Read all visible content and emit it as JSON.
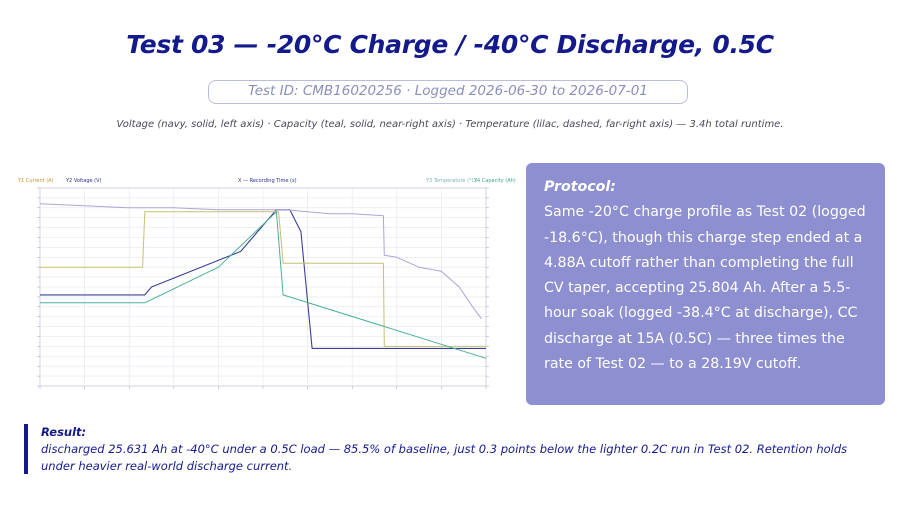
{
  "slide": {
    "title": "Test 03 — -20°C Charge / -40°C Discharge, 0.5C",
    "test_info": "Test ID: CMB16020256 · Logged 2026-06-30 to 2026-07-01",
    "caption": "Voltage (navy, solid, left axis) · Capacity (teal, solid, near-right axis) · Temperature (lilac, dashed, far-right axis) — 3.4h total runtime."
  },
  "chart": {
    "legend": {
      "y1": "Y1 Current (A)",
      "y2": "Y2 Voltage (V)",
      "x": "X — Recording Time (s)",
      "y3": "Y3 Temperature (°C)",
      "y4": "Y4 Capacity (Ah)"
    },
    "colors": {
      "y1": "#c9932e",
      "y2": "#2a2f8f",
      "y3": "#7fb3b0",
      "y4": "#3aa98f",
      "current": "#c8c070",
      "voltage": "#3b3f9a",
      "capacity": "#48b09a",
      "temperature": "#a9a6d8",
      "grid": "#e3e6ee"
    },
    "chart_data": {
      "type": "line",
      "x_range": [
        0,
        10
      ],
      "y_range": [
        0,
        100
      ],
      "note_units": "x is recording time in equal tick steps (0-10); y values are read off the normalized plot height (0-100)",
      "series": [
        {
          "key": "voltage",
          "values": [
            [
              0.0,
              46
            ],
            [
              2.35,
              46
            ],
            [
              2.5,
              50
            ],
            [
              4.5,
              68
            ],
            [
              5.3,
              89
            ],
            [
              5.6,
              89
            ],
            [
              5.85,
              78
            ],
            [
              6.1,
              19
            ],
            [
              10.0,
              19
            ]
          ]
        },
        {
          "key": "current",
          "values": [
            [
              0.0,
              60
            ],
            [
              2.3,
              60
            ],
            [
              2.35,
              88
            ],
            [
              5.35,
              88
            ],
            [
              5.45,
              62
            ],
            [
              7.7,
              62
            ],
            [
              7.72,
              20
            ],
            [
              10.0,
              20
            ]
          ]
        },
        {
          "key": "capacity",
          "values": [
            [
              0.0,
              42
            ],
            [
              2.35,
              42
            ],
            [
              4.0,
              60
            ],
            [
              5.3,
              88
            ],
            [
              5.45,
              46
            ],
            [
              10.0,
              14
            ]
          ]
        },
        {
          "key": "temperature",
          "values": [
            [
              0.0,
              92
            ],
            [
              1.0,
              91
            ],
            [
              2.0,
              90
            ],
            [
              3.0,
              90
            ],
            [
              4.0,
              89
            ],
            [
              5.0,
              89
            ],
            [
              5.5,
              89
            ],
            [
              6.0,
              88
            ],
            [
              6.5,
              87
            ],
            [
              7.0,
              87
            ],
            [
              7.7,
              86
            ],
            [
              7.72,
              66
            ],
            [
              8.0,
              65
            ],
            [
              8.5,
              60
            ],
            [
              9.0,
              58
            ],
            [
              9.4,
              50
            ],
            [
              9.7,
              40
            ],
            [
              9.9,
              34
            ]
          ]
        }
      ]
    }
  },
  "protocol": {
    "heading": "Protocol:",
    "body": "Same -20°C charge profile as Test 02 (logged -18.6°C), though this charge step ended at a 4.88A cutoff rather than completing the full CV taper, accepting 25.804 Ah. After a 5.5-hour soak (logged -38.4°C at discharge), CC discharge at 15A (0.5C) — three times the rate of Test 02 — to a 28.19V cutoff."
  },
  "result": {
    "heading": "Result:",
    "body": "discharged 25.631 Ah at -40°C under a 0.5C load — 85.5% of baseline, just 0.3 points below the lighter 0.2C run in Test 02. Retention holds under heavier real-world discharge current."
  }
}
